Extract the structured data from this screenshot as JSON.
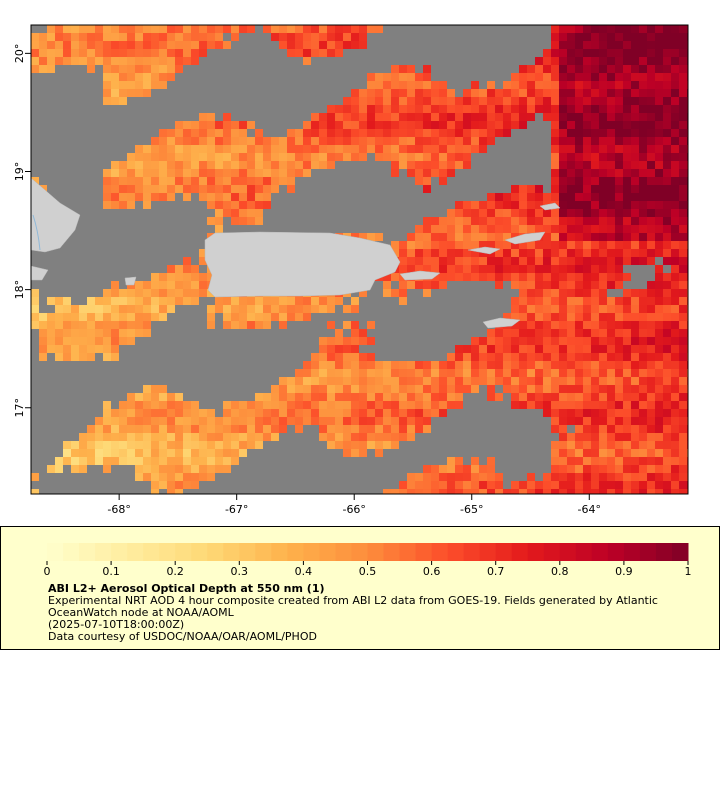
{
  "map": {
    "xlim": [
      -68.75,
      -63.16
    ],
    "ylim": [
      16.27,
      20.24
    ],
    "xticks": [
      {
        "value": -68,
        "label": "-68°"
      },
      {
        "value": -67,
        "label": "-67°"
      },
      {
        "value": -66,
        "label": "-66°"
      },
      {
        "value": -65,
        "label": "-65°"
      },
      {
        "value": -64,
        "label": "-64°"
      }
    ],
    "yticks": [
      {
        "value": 17,
        "label": "17°"
      },
      {
        "value": 18,
        "label": "18°"
      },
      {
        "value": 19,
        "label": "19°"
      },
      {
        "value": 20,
        "label": "20°"
      }
    ]
  },
  "colorbar": {
    "lim": [
      0,
      1
    ],
    "ticks": [
      0,
      0.1,
      0.2,
      0.3,
      0.4,
      0.5,
      0.6,
      0.7,
      0.8,
      0.9,
      1
    ],
    "colormap": [
      "#ffffcc",
      "#ffeda0",
      "#fed976",
      "#feb24c",
      "#fd8d3c",
      "#fc4e2a",
      "#e31a1c",
      "#bd0026",
      "#800026"
    ]
  },
  "legend": {
    "title": "ABI L2+ Aerosol Optical Depth at 550 nm (1)",
    "lines": [
      "Experimental NRT AOD 4 hour composite created from ABI L2 data from GOES-19. Fields generated by Atlantic",
      "OceanWatch node at NOAA/AOML",
      "(2025-07-10T18:00:00Z)",
      "Data courtesy of USDOC/NOAA/OAR/AOML/PHOD"
    ]
  }
}
